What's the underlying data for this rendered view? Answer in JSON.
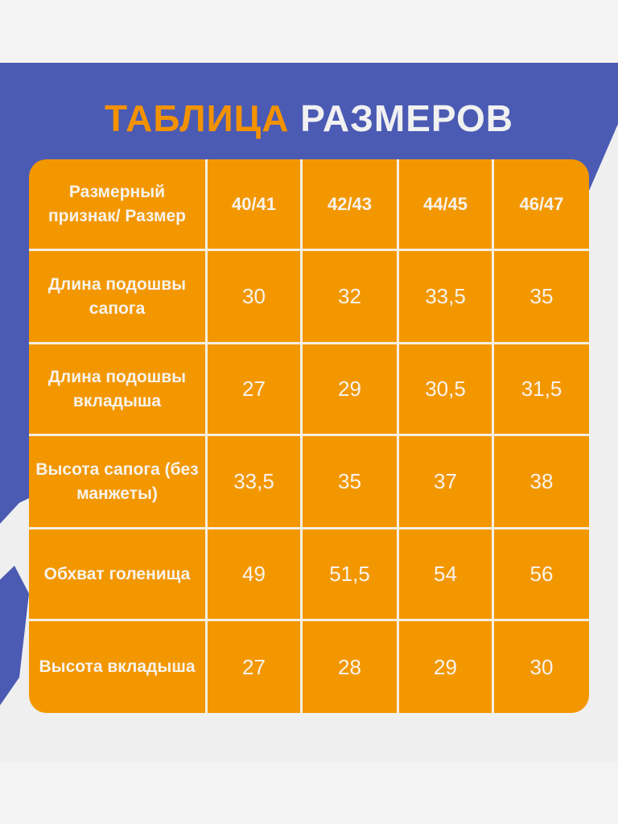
{
  "title": {
    "part1": "ТАБЛИЦА",
    "part2": "РАЗМЕРОВ"
  },
  "colors": {
    "orange": "#f39700",
    "blue": "#4b5bb4",
    "white": "#f5efe4"
  },
  "table": {
    "corner": "Размерный признак/ Размер",
    "headers": [
      "40/41",
      "42/43",
      "44/45",
      "46/47"
    ],
    "rows": [
      {
        "label": "Длина подошвы сапога",
        "values": [
          "30",
          "32",
          "33,5",
          "35"
        ]
      },
      {
        "label": "Длина подошвы вкладыша",
        "values": [
          "27",
          "29",
          "30,5",
          "31,5"
        ]
      },
      {
        "label": "Высота сапога (без манжеты)",
        "values": [
          "33,5",
          "35",
          "37",
          "38"
        ]
      },
      {
        "label": "Обхват голенища",
        "values": [
          "49",
          "51,5",
          "54",
          "56"
        ]
      },
      {
        "label": "Высота вкладыша",
        "values": [
          "27",
          "28",
          "29",
          "30"
        ]
      }
    ]
  },
  "chart_data": {
    "type": "table",
    "title": "ТАБЛИЦА РАЗМЕРОВ",
    "columns": [
      "Размерный признак/ Размер",
      "40/41",
      "42/43",
      "44/45",
      "46/47"
    ],
    "rows": [
      [
        "Длина подошвы сапога",
        30,
        32,
        33.5,
        35
      ],
      [
        "Длина подошвы вкладыша",
        27,
        29,
        30.5,
        31.5
      ],
      [
        "Высота сапога (без манжеты)",
        33.5,
        35,
        37,
        38
      ],
      [
        "Обхват голенища",
        49,
        51.5,
        54,
        56
      ],
      [
        "Высота вкладыша",
        27,
        28,
        29,
        30
      ]
    ]
  }
}
